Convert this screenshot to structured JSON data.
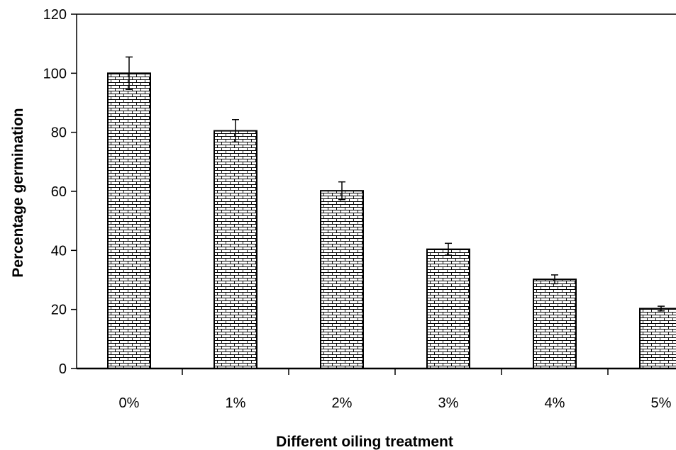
{
  "chart_data": {
    "type": "bar",
    "categories": [
      "0%",
      "1%",
      "2%",
      "3%",
      "4%",
      "5%"
    ],
    "values": [
      100,
      80.5,
      60.2,
      40.4,
      30.2,
      20.3
    ],
    "errors": [
      5.5,
      3.8,
      3.0,
      2.0,
      1.5,
      0.8
    ],
    "title": "",
    "xlabel": "Different oiling treatment",
    "ylabel": "Percentage germination",
    "ylim": [
      0,
      120
    ],
    "yticks": [
      0,
      20,
      40,
      60,
      80,
      100,
      120
    ],
    "grid": false,
    "legend": "none",
    "bar_fill": "brick-pattern",
    "colors": {
      "bar_stroke": "#000000",
      "pattern_line": "#000000",
      "background": "#ffffff"
    }
  }
}
